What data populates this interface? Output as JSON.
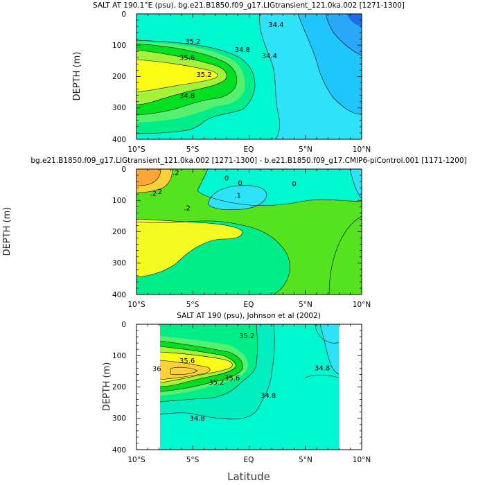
{
  "chart_data": [
    {
      "type": "contour",
      "title": "SALT AT 190.1°E (psu), bg.e21.B1850.f09_g17.LIGtransient_121.0ka.002 [1271-1300]",
      "xlabel": "",
      "ylabel": "DEPTH (m)",
      "xlim": [
        -10,
        10
      ],
      "ylim": [
        400,
        0
      ],
      "x_ticks": [
        "10°S",
        "5°S",
        "EQ",
        "5°N",
        "10°N"
      ],
      "y_ticks": [
        "0",
        "100",
        "200",
        "300",
        "400"
      ],
      "contour_labels": [
        {
          "text": "34.4",
          "x": 2.4,
          "y": 35
        },
        {
          "text": "34.4",
          "x": 1.8,
          "y": 135
        },
        {
          "text": "34.8",
          "x": -0.6,
          "y": 115
        },
        {
          "text": "35.2",
          "x": -5.0,
          "y": 88
        },
        {
          "text": "35.6",
          "x": -5.5,
          "y": 140
        },
        {
          "text": "35.2",
          "x": -4.0,
          "y": 195
        },
        {
          "text": "34.8",
          "x": -5.5,
          "y": 262
        }
      ]
    },
    {
      "type": "contour",
      "title": "bg.e21.B1850.f09_g17.LIGtransient_121.0ka.002 [1271-1300] - b.e21.B1850.f09_g17.CMIP6-piControl.001 [1171-1200]",
      "xlabel": "",
      "ylabel": "DEPTH (m)",
      "xlim": [
        -10,
        10
      ],
      "ylim": [
        400,
        0
      ],
      "x_ticks": [
        "10°S",
        "5°S",
        "EQ",
        "5°N",
        "10°N"
      ],
      "y_ticks": [
        "0",
        "100",
        "200",
        "300",
        "400"
      ],
      "contour_labels": [
        {
          "text": ".2",
          "x": -6.5,
          "y": 12
        },
        {
          "text": ".2",
          "x": -8.0,
          "y": 73
        },
        {
          "text": "0",
          "x": -2.0,
          "y": 30
        },
        {
          "text": "0",
          "x": -0.8,
          "y": 45
        },
        {
          "text": "0",
          "x": 4.0,
          "y": 48
        },
        {
          "text": ".2",
          "x": -8.5,
          "y": 78
        },
        {
          "text": ".1",
          "x": -1.0,
          "y": 85
        },
        {
          "text": ".2",
          "x": -5.5,
          "y": 125
        }
      ]
    },
    {
      "type": "contour",
      "title": "SALT AT 190 (psu), Johnson et al (2002)",
      "xlabel": "Latitude",
      "ylabel": "DEPTH (m)",
      "xlim": [
        -10,
        10
      ],
      "ylim": [
        400,
        0
      ],
      "data_x_range": [
        -8,
        8
      ],
      "x_ticks": [
        "10°S",
        "5°S",
        "EQ",
        "5°N",
        "10°N"
      ],
      "y_ticks": [
        "0",
        "100",
        "200",
        "300",
        "400"
      ],
      "contour_labels": [
        {
          "text": "35.2",
          "x": -0.2,
          "y": 38
        },
        {
          "text": "35.6",
          "x": -5.5,
          "y": 117
        },
        {
          "text": "36",
          "x": -8.2,
          "y": 142
        },
        {
          "text": "35.6",
          "x": -1.5,
          "y": 172
        },
        {
          "text": "35.2",
          "x": -2.9,
          "y": 186
        },
        {
          "text": "34.8",
          "x": 6.5,
          "y": 140
        },
        {
          "text": "34.8",
          "x": 1.7,
          "y": 228
        },
        {
          "text": "34.8",
          "x": -4.6,
          "y": 300
        }
      ]
    }
  ]
}
